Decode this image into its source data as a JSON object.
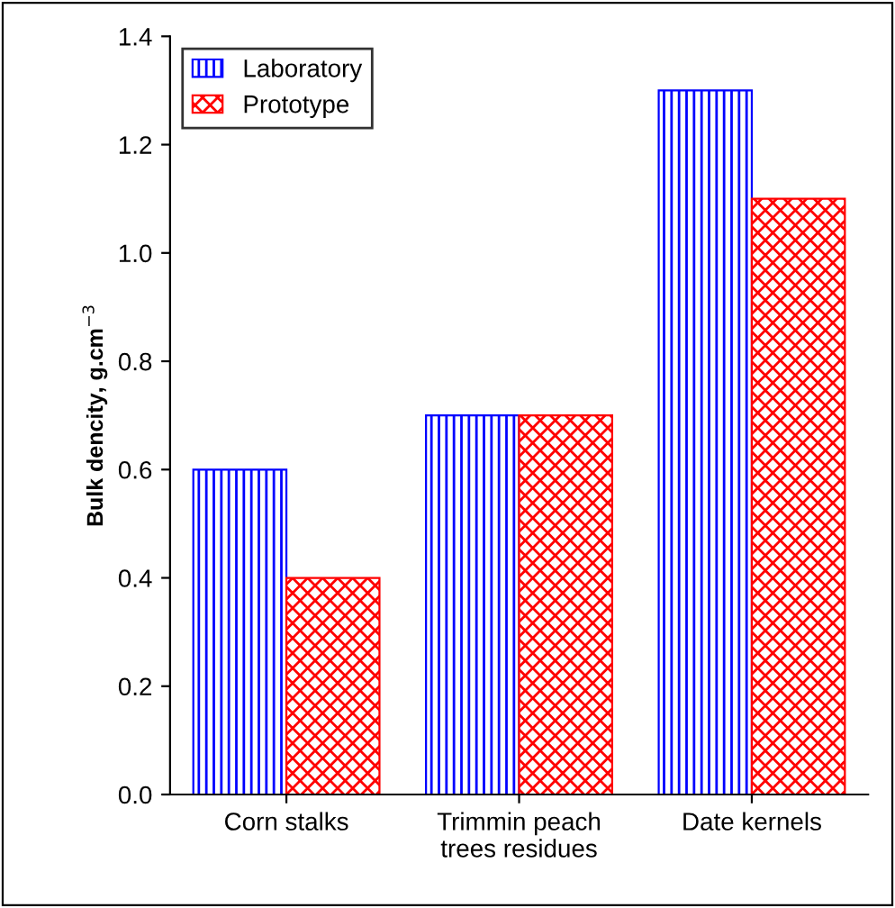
{
  "chart_data": {
    "type": "bar",
    "ylabel": "Bulk dencity, g.cm$^{−3}$",
    "categories": [
      "Corn stalks",
      "Trimmin peach\ntrees residues",
      "Date kernels"
    ],
    "series": [
      {
        "name": "Laboratory",
        "color": "#0000ff",
        "values": [
          0.6,
          0.7,
          1.3
        ]
      },
      {
        "name": "Prototype",
        "color": "#ff0000",
        "values": [
          0.4,
          0.7,
          1.1
        ]
      }
    ],
    "ylim": [
      0,
      1.4
    ],
    "yticks": [
      {
        "value": 0,
        "label": "0.0"
      },
      {
        "value": 0.2,
        "label": "0.2"
      },
      {
        "value": 0.4,
        "label": "0.4"
      },
      {
        "value": 0.6,
        "label": "0.6"
      },
      {
        "value": 0.8,
        "label": "0.8"
      },
      {
        "value": 1.0,
        "label": "1.0"
      },
      {
        "value": 1.2,
        "label": "1.2"
      },
      {
        "value": 1.4,
        "label": "1.4"
      }
    ],
    "grid": false,
    "legend": "top left"
  }
}
